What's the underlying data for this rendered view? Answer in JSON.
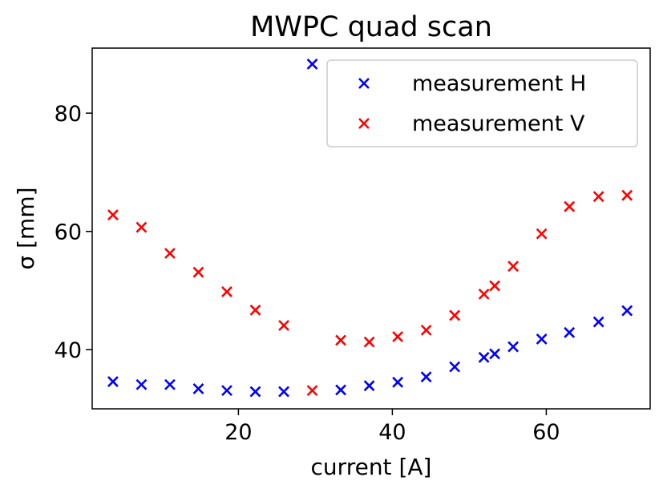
{
  "chart_data": {
    "type": "scatter",
    "title": "MWPC quad scan",
    "xlabel": "current [A]",
    "ylabel": "σ [mm]",
    "xlim": [
      1,
      73.5
    ],
    "ylim": [
      30,
      91
    ],
    "xticks": [
      20,
      40,
      60
    ],
    "yticks": [
      40,
      60,
      80
    ],
    "grid": false,
    "legend_position": "top-right",
    "marker": "x",
    "series": [
      {
        "name": "measurement H",
        "color": "#0000ff",
        "x": [
          3.7,
          7.4,
          11.1,
          14.8,
          18.5,
          22.2,
          25.9,
          29.6,
          33.3,
          37.0,
          40.7,
          44.4,
          48.1,
          51.9,
          53.3,
          55.7,
          59.4,
          63.0,
          66.8,
          70.5
        ],
        "y": [
          34.6,
          34.1,
          34.1,
          33.4,
          33.1,
          32.9,
          32.9,
          88.3,
          33.2,
          33.9,
          34.5,
          35.4,
          37.1,
          38.7,
          39.3,
          40.5,
          41.8,
          42.9,
          44.7,
          46.6
        ]
      },
      {
        "name": "measurement V",
        "color": "#ff0000",
        "x": [
          3.7,
          7.4,
          11.1,
          14.8,
          18.5,
          22.2,
          25.9,
          29.6,
          33.3,
          37.0,
          40.7,
          44.4,
          48.1,
          51.9,
          53.3,
          55.7,
          59.4,
          63.0,
          66.8,
          70.5
        ],
        "y": [
          62.8,
          60.7,
          56.3,
          53.1,
          49.8,
          46.7,
          44.1,
          33.1,
          41.6,
          41.3,
          42.2,
          43.3,
          45.8,
          49.4,
          50.8,
          54.1,
          59.6,
          64.2,
          65.9,
          66.1
        ]
      }
    ]
  }
}
